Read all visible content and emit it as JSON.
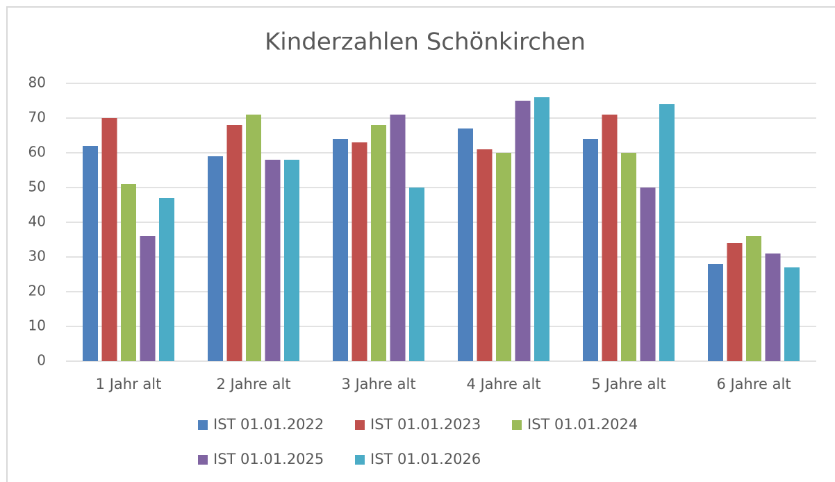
{
  "chart_data": {
    "type": "bar",
    "title": "Kinderzahlen Schönkirchen",
    "categories": [
      "1 Jahr alt",
      "2 Jahre alt",
      "3 Jahre alt",
      "4 Jahre alt",
      "5 Jahre alt",
      "6 Jahre alt"
    ],
    "series": [
      {
        "name": "IST 01.01.2022",
        "color": "#4f81bd",
        "values": [
          62,
          59,
          64,
          67,
          64,
          28
        ]
      },
      {
        "name": "IST 01.01.2023",
        "color": "#c0504d",
        "values": [
          70,
          68,
          63,
          61,
          71,
          34
        ]
      },
      {
        "name": "IST 01.01.2024",
        "color": "#9bbb59",
        "values": [
          51,
          71,
          68,
          60,
          60,
          36
        ]
      },
      {
        "name": "IST 01.01.2025",
        "color": "#8064a2",
        "values": [
          36,
          58,
          71,
          75,
          50,
          31
        ]
      },
      {
        "name": "IST 01.01.2026",
        "color": "#4bacc6",
        "values": [
          47,
          58,
          50,
          76,
          74,
          27
        ]
      }
    ],
    "ylim": [
      0,
      80
    ],
    "yticks": [
      0,
      10,
      20,
      30,
      40,
      50,
      60,
      70,
      80
    ],
    "grid": true,
    "legend": "bottom"
  }
}
